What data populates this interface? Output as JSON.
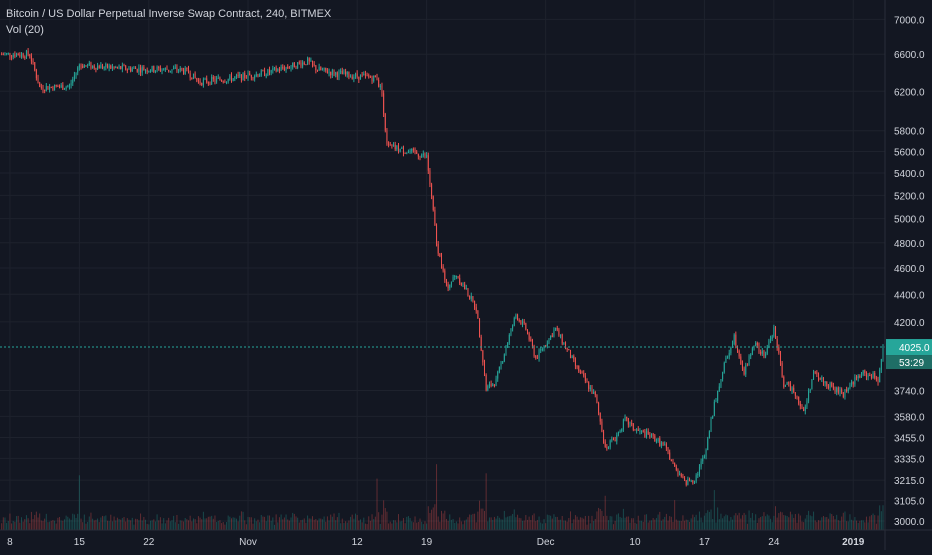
{
  "header": {
    "title": "Bitcoin / US Dollar Perpetual Inverse Swap Contract, 240, BITMEX",
    "volume_label": "Vol (20)"
  },
  "colors": {
    "background": "#131722",
    "up": "#26a69a",
    "down": "#ef5350",
    "grid": "#1e222d",
    "price_line": "#26a69a",
    "text": "#d1d4dc"
  },
  "chart_data": {
    "type": "candlestick",
    "title": "Bitcoin / US Dollar Perpetual Inverse Swap Contract, 240, BITMEX",
    "interval": "240",
    "exchange": "BITMEX",
    "y_axis": {
      "scale": "log",
      "ylim": [
        2960,
        7100
      ],
      "ticks": [
        7000,
        6600,
        6200,
        5800,
        5600,
        5400,
        5200,
        5000,
        4800,
        4600,
        4400,
        4200,
        3740,
        3580,
        3455,
        3335,
        3215,
        3105,
        3000
      ],
      "tick_labels": [
        "7000.0",
        "6600.0",
        "6200.0",
        "5800.0",
        "5600.0",
        "5400.0",
        "5200.0",
        "5000.0",
        "4800.0",
        "4600.0",
        "4400.0",
        "4200.0",
        "3740.0",
        "3580.0",
        "3455.0",
        "3335.0",
        "3215.0",
        "3105.0",
        "3000.0"
      ]
    },
    "x_axis": {
      "range": [
        "2018-10-07",
        "2019-01-04"
      ],
      "ticks": [
        {
          "date": "2018-10-08",
          "label": "8"
        },
        {
          "date": "2018-10-15",
          "label": "15"
        },
        {
          "date": "2018-10-22",
          "label": "22"
        },
        {
          "date": "2018-11-01",
          "label": "Nov"
        },
        {
          "date": "2018-11-12",
          "label": "12"
        },
        {
          "date": "2018-11-19",
          "label": "19"
        },
        {
          "date": "2018-12-01",
          "label": "Dec"
        },
        {
          "date": "2018-12-10",
          "label": "10"
        },
        {
          "date": "2018-12-17",
          "label": "17"
        },
        {
          "date": "2018-12-24",
          "label": "24"
        },
        {
          "date": "2019-01-01",
          "label": "2019"
        }
      ]
    },
    "price_path": [
      [
        "2018-10-07",
        6600
      ],
      [
        "2018-10-10",
        6600
      ],
      [
        "2018-10-11",
        6240
      ],
      [
        "2018-10-14",
        6250
      ],
      [
        "2018-10-15",
        6480
      ],
      [
        "2018-10-20",
        6440
      ],
      [
        "2018-10-25",
        6430
      ],
      [
        "2018-10-26",
        6400
      ],
      [
        "2018-10-27",
        6300
      ],
      [
        "2018-10-30",
        6330
      ],
      [
        "2018-11-03",
        6400
      ],
      [
        "2018-11-07",
        6520
      ],
      [
        "2018-11-08",
        6430
      ],
      [
        "2018-11-11",
        6370
      ],
      [
        "2018-11-14",
        6340
      ],
      [
        "2018-11-14 12:00",
        6180
      ],
      [
        "2018-11-15",
        5650
      ],
      [
        "2018-11-18",
        5580
      ],
      [
        "2018-11-19",
        5550
      ],
      [
        "2018-11-20",
        4800
      ],
      [
        "2018-11-21",
        4450
      ],
      [
        "2018-11-22",
        4550
      ],
      [
        "2018-11-24",
        4300
      ],
      [
        "2018-11-25",
        3750
      ],
      [
        "2018-11-26",
        3800
      ],
      [
        "2018-11-28",
        4250
      ],
      [
        "2018-11-29",
        4150
      ],
      [
        "2018-11-30",
        3950
      ],
      [
        "2018-12-02",
        4150
      ],
      [
        "2018-12-04",
        3900
      ],
      [
        "2018-12-06",
        3700
      ],
      [
        "2018-12-07",
        3400
      ],
      [
        "2018-12-08",
        3450
      ],
      [
        "2018-12-09",
        3560
      ],
      [
        "2018-12-10",
        3500
      ],
      [
        "2018-12-12",
        3450
      ],
      [
        "2018-12-13",
        3400
      ],
      [
        "2018-12-14",
        3280
      ],
      [
        "2018-12-15",
        3200
      ],
      [
        "2018-12-16",
        3220
      ],
      [
        "2018-12-17",
        3350
      ],
      [
        "2018-12-18",
        3650
      ],
      [
        "2018-12-19",
        3900
      ],
      [
        "2018-12-20",
        4100
      ],
      [
        "2018-12-21",
        3850
      ],
      [
        "2018-12-22",
        4050
      ],
      [
        "2018-12-23",
        3960
      ],
      [
        "2018-12-24",
        4150
      ],
      [
        "2018-12-25",
        3780
      ],
      [
        "2018-12-26",
        3750
      ],
      [
        "2018-12-27",
        3600
      ],
      [
        "2018-12-28",
        3850
      ],
      [
        "2018-12-29",
        3800
      ],
      [
        "2018-12-30",
        3750
      ],
      [
        "2018-12-31",
        3720
      ],
      [
        "2019-01-01",
        3800
      ],
      [
        "2019-01-02",
        3850
      ],
      [
        "2019-01-03",
        3830
      ],
      [
        "2019-01-03 12:00",
        3810
      ],
      [
        "2019-01-04",
        4025
      ]
    ],
    "last_price": 4025.0,
    "last_price_label": "4025.0",
    "countdown_label": "53:29",
    "grid": true,
    "volume": {
      "name": "Vol (20)",
      "ylim": [
        0,
        100
      ],
      "spikes": [
        {
          "date": "2018-10-15",
          "value": 85
        },
        {
          "date": "2018-11-14",
          "value": 75
        },
        {
          "date": "2018-11-20",
          "value": 80
        },
        {
          "date": "2018-11-25",
          "value": 70
        },
        {
          "date": "2018-12-07",
          "value": 50
        },
        {
          "date": "2018-12-14",
          "value": 45
        },
        {
          "date": "2018-12-18",
          "value": 60
        },
        {
          "date": "2019-01-04",
          "value": 30
        }
      ]
    }
  }
}
